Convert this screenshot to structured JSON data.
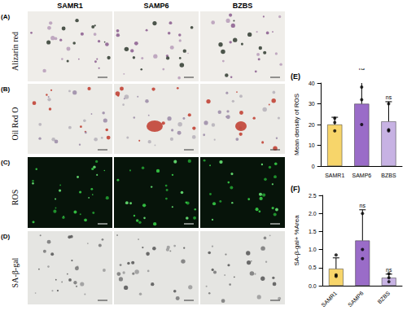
{
  "figure": {
    "columns": [
      "SAMR1",
      "SAMP6",
      "BZBS"
    ],
    "rows": [
      {
        "panel": "(A)",
        "label": "Alizarin red"
      },
      {
        "panel": "(B)",
        "label": "Oil Red O"
      },
      {
        "panel": "(C)",
        "label": "ROS"
      },
      {
        "panel": "(D)",
        "label": "SA-β-gal"
      }
    ]
  },
  "chart_data": [
    {
      "type": "bar",
      "panel": "(E)",
      "ylabel": "Mean density of ROS",
      "categories": [
        "SAMR1",
        "SAMP6",
        "BZBS"
      ],
      "values": [
        20,
        30,
        21.5
      ],
      "errors": [
        3.5,
        15,
        9.5
      ],
      "points": [
        [
          23,
          21,
          17
        ],
        [
          38,
          32,
          20
        ],
        [
          30,
          17,
          17.5
        ]
      ],
      "colors": [
        "#f7d56a",
        "#9a6cc8",
        "#c7b2e3"
      ],
      "annotations": [
        {
          "category": "SAMP6",
          "text": "ns"
        },
        {
          "category": "BZBS",
          "text": "ns"
        }
      ],
      "ylim": [
        0,
        40
      ],
      "yticks": [
        0,
        10,
        20,
        30,
        40
      ],
      "grid": false
    },
    {
      "type": "bar",
      "panel": "(F)",
      "ylabel": "SA-β-gal+ %Area",
      "categories": [
        "SAMR1",
        "SAMP6",
        "BZBS"
      ],
      "values": [
        0.47,
        1.25,
        0.22
      ],
      "errors": [
        0.3,
        0.85,
        0.1
      ],
      "points": [
        [
          0.85,
          0.3,
          0.26
        ],
        [
          2.0,
          1.0,
          0.75
        ],
        [
          0.33,
          0.22,
          0.11
        ]
      ],
      "colors": [
        "#f7d56a",
        "#9a6cc8",
        "#c7b2e3"
      ],
      "annotations": [
        {
          "category": "SAMP6",
          "text": "ns"
        },
        {
          "category": "BZBS",
          "text": "ns"
        }
      ],
      "ylim": [
        0,
        2.5
      ],
      "yticks": [
        {
          "value": 0,
          "label": "0.0"
        },
        {
          "value": 0.5,
          "label": "0.5"
        },
        {
          "value": 1,
          "label": "1.0"
        },
        {
          "value": 1.5,
          "label": "1.5"
        },
        {
          "value": 2,
          "label": "2.0"
        },
        {
          "value": 2.5,
          "label": "2.5"
        }
      ],
      "grid": false
    }
  ]
}
